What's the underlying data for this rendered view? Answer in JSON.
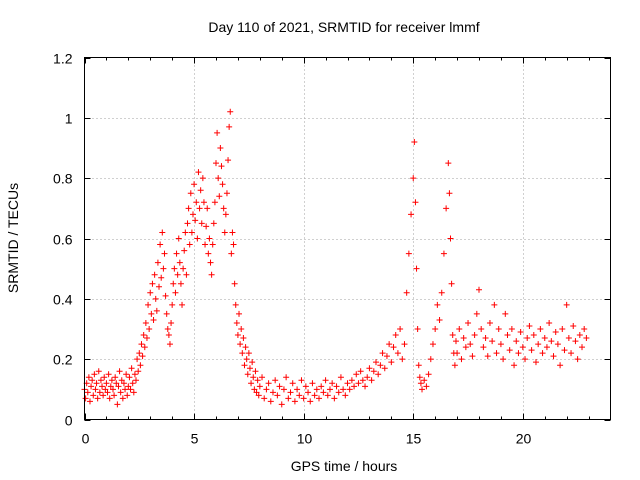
{
  "chart_data": {
    "type": "scatter",
    "title": "Day 110 of 2021, SRMTID for receiver lmmf",
    "xlabel": "GPS time / hours",
    "ylabel": "SRMTID / TECUs",
    "xlim": [
      0,
      24
    ],
    "ylim": [
      0,
      1.2
    ],
    "xticks": [
      0,
      5,
      10,
      15,
      20
    ],
    "xtick_labels": [
      "0",
      "5",
      "10",
      "15",
      "20"
    ],
    "yticks": [
      0,
      0.2,
      0.4,
      0.6,
      0.8,
      1.0,
      1.2
    ],
    "ytick_labels": [
      "0",
      "0.2",
      "0.4",
      "0.6",
      "0.8",
      "1",
      "1.2"
    ],
    "grid": true,
    "marker": "plus",
    "color": "#ff0000",
    "series": [
      {
        "name": "SRMTID",
        "x": [
          0.0,
          0.05,
          0.1,
          0.15,
          0.2,
          0.25,
          0.3,
          0.35,
          0.4,
          0.45,
          0.5,
          0.55,
          0.6,
          0.65,
          0.7,
          0.75,
          0.8,
          0.85,
          0.9,
          0.95,
          1.0,
          1.05,
          1.1,
          1.15,
          1.2,
          1.25,
          1.3,
          1.35,
          1.4,
          1.45,
          1.5,
          1.55,
          1.6,
          1.65,
          1.7,
          1.75,
          1.8,
          1.85,
          1.9,
          1.95,
          2.0,
          2.05,
          2.1,
          2.15,
          2.2,
          2.25,
          2.3,
          2.35,
          2.4,
          2.45,
          2.5,
          2.55,
          2.6,
          2.65,
          2.7,
          2.75,
          2.8,
          2.85,
          2.9,
          2.95,
          3.0,
          3.05,
          3.1,
          3.15,
          3.2,
          3.25,
          3.3,
          3.35,
          3.4,
          3.45,
          3.5,
          3.55,
          3.6,
          3.65,
          3.7,
          3.75,
          3.8,
          3.85,
          3.9,
          3.95,
          4.0,
          4.05,
          4.1,
          4.15,
          4.2,
          4.25,
          4.3,
          4.35,
          4.4,
          4.45,
          4.5,
          4.55,
          4.6,
          4.65,
          4.7,
          4.75,
          4.8,
          4.85,
          4.9,
          4.95,
          5.0,
          5.05,
          5.1,
          5.15,
          5.2,
          5.25,
          5.3,
          5.35,
          5.4,
          5.45,
          5.5,
          5.55,
          5.6,
          5.65,
          5.7,
          5.75,
          5.8,
          5.85,
          5.9,
          5.95,
          6.0,
          6.05,
          6.1,
          6.15,
          6.2,
          6.25,
          6.3,
          6.35,
          6.4,
          6.45,
          6.5,
          6.55,
          6.6,
          6.65,
          6.7,
          6.75,
          6.8,
          6.85,
          6.9,
          6.95,
          7.0,
          7.05,
          7.1,
          7.15,
          7.2,
          7.25,
          7.3,
          7.35,
          7.4,
          7.45,
          7.5,
          7.55,
          7.6,
          7.65,
          7.7,
          7.75,
          7.8,
          7.85,
          7.9,
          7.95,
          8.0,
          8.1,
          8.2,
          8.3,
          8.4,
          8.5,
          8.6,
          8.7,
          8.8,
          8.9,
          9.0,
          9.1,
          9.2,
          9.3,
          9.4,
          9.5,
          9.6,
          9.7,
          9.8,
          9.9,
          10.0,
          10.1,
          10.2,
          10.3,
          10.4,
          10.5,
          10.6,
          10.7,
          10.8,
          10.9,
          11.0,
          11.1,
          11.2,
          11.3,
          11.4,
          11.5,
          11.6,
          11.7,
          11.8,
          11.9,
          12.0,
          12.1,
          12.2,
          12.3,
          12.4,
          12.5,
          12.6,
          12.7,
          12.8,
          12.9,
          13.0,
          13.1,
          13.2,
          13.3,
          13.4,
          13.5,
          13.6,
          13.7,
          13.8,
          13.9,
          14.0,
          14.1,
          14.2,
          14.3,
          14.4,
          14.5,
          14.6,
          14.7,
          14.8,
          14.9,
          15.0,
          15.05,
          15.1,
          15.15,
          15.2,
          15.25,
          15.3,
          15.35,
          15.4,
          15.5,
          15.6,
          15.7,
          15.8,
          15.9,
          16.0,
          16.1,
          16.2,
          16.3,
          16.4,
          16.5,
          16.6,
          16.65,
          16.7,
          16.75,
          16.8,
          16.85,
          16.9,
          16.95,
          17.0,
          17.1,
          17.2,
          17.3,
          17.4,
          17.5,
          17.6,
          17.7,
          17.8,
          17.9,
          18.0,
          18.1,
          18.2,
          18.3,
          18.4,
          18.5,
          18.6,
          18.7,
          18.8,
          18.9,
          19.0,
          19.1,
          19.2,
          19.3,
          19.4,
          19.5,
          19.6,
          19.7,
          19.8,
          19.9,
          20.0,
          20.1,
          20.2,
          20.3,
          20.4,
          20.5,
          20.6,
          20.7,
          20.8,
          20.9,
          21.0,
          21.1,
          21.2,
          21.3,
          21.4,
          21.5,
          21.6,
          21.7,
          21.8,
          21.9,
          22.0,
          22.1,
          22.2,
          22.3,
          22.4,
          22.5,
          22.6,
          22.7,
          22.8,
          22.9
        ],
        "y": [
          0.1,
          0.07,
          0.12,
          0.09,
          0.14,
          0.06,
          0.11,
          0.13,
          0.08,
          0.15,
          0.1,
          0.12,
          0.07,
          0.16,
          0.09,
          0.13,
          0.11,
          0.08,
          0.14,
          0.1,
          0.12,
          0.09,
          0.15,
          0.07,
          0.11,
          0.13,
          0.1,
          0.08,
          0.14,
          0.12,
          0.05,
          0.11,
          0.16,
          0.09,
          0.13,
          0.07,
          0.12,
          0.1,
          0.15,
          0.08,
          0.11,
          0.14,
          0.1,
          0.17,
          0.12,
          0.09,
          0.15,
          0.13,
          0.2,
          0.16,
          0.22,
          0.18,
          0.25,
          0.21,
          0.28,
          0.24,
          0.32,
          0.27,
          0.38,
          0.3,
          0.42,
          0.35,
          0.45,
          0.33,
          0.48,
          0.4,
          0.36,
          0.52,
          0.44,
          0.58,
          0.47,
          0.62,
          0.5,
          0.55,
          0.41,
          0.35,
          0.3,
          0.28,
          0.25,
          0.32,
          0.38,
          0.45,
          0.5,
          0.42,
          0.55,
          0.48,
          0.6,
          0.52,
          0.45,
          0.38,
          0.5,
          0.56,
          0.62,
          0.48,
          0.65,
          0.7,
          0.58,
          0.75,
          0.62,
          0.68,
          0.78,
          0.66,
          0.72,
          0.6,
          0.82,
          0.7,
          0.76,
          0.65,
          0.8,
          0.72,
          0.58,
          0.64,
          0.7,
          0.55,
          0.6,
          0.52,
          0.48,
          0.58,
          0.65,
          0.72,
          0.85,
          0.95,
          0.8,
          0.74,
          0.9,
          0.84,
          0.78,
          0.7,
          0.62,
          0.68,
          0.75,
          0.86,
          0.97,
          1.02,
          0.55,
          0.62,
          0.58,
          0.45,
          0.38,
          0.32,
          0.28,
          0.35,
          0.25,
          0.3,
          0.22,
          0.27,
          0.18,
          0.24,
          0.2,
          0.15,
          0.22,
          0.17,
          0.12,
          0.19,
          0.14,
          0.1,
          0.16,
          0.09,
          0.13,
          0.08,
          0.11,
          0.14,
          0.07,
          0.1,
          0.12,
          0.06,
          0.09,
          0.13,
          0.08,
          0.11,
          0.05,
          0.1,
          0.14,
          0.07,
          0.09,
          0.12,
          0.06,
          0.1,
          0.08,
          0.13,
          0.07,
          0.11,
          0.09,
          0.06,
          0.12,
          0.08,
          0.1,
          0.07,
          0.11,
          0.09,
          0.13,
          0.08,
          0.1,
          0.12,
          0.07,
          0.11,
          0.09,
          0.14,
          0.1,
          0.08,
          0.12,
          0.1,
          0.13,
          0.11,
          0.15,
          0.12,
          0.16,
          0.13,
          0.11,
          0.14,
          0.17,
          0.13,
          0.16,
          0.19,
          0.15,
          0.18,
          0.22,
          0.17,
          0.21,
          0.25,
          0.19,
          0.24,
          0.28,
          0.22,
          0.3,
          0.2,
          0.25,
          0.42,
          0.55,
          0.68,
          0.8,
          0.92,
          0.72,
          0.5,
          0.3,
          0.18,
          0.14,
          0.12,
          0.1,
          0.13,
          0.11,
          0.15,
          0.2,
          0.25,
          0.3,
          0.38,
          0.33,
          0.42,
          0.55,
          0.7,
          0.85,
          0.75,
          0.6,
          0.45,
          0.28,
          0.22,
          0.18,
          0.26,
          0.22,
          0.3,
          0.2,
          0.27,
          0.24,
          0.32,
          0.25,
          0.21,
          0.28,
          0.35,
          0.43,
          0.3,
          0.24,
          0.27,
          0.21,
          0.32,
          0.26,
          0.38,
          0.22,
          0.3,
          0.25,
          0.2,
          0.35,
          0.28,
          0.23,
          0.3,
          0.18,
          0.26,
          0.22,
          0.29,
          0.24,
          0.2,
          0.27,
          0.31,
          0.23,
          0.28,
          0.19,
          0.25,
          0.3,
          0.22,
          0.27,
          0.24,
          0.32,
          0.26,
          0.21,
          0.29,
          0.25,
          0.18,
          0.3,
          0.23,
          0.38,
          0.27,
          0.22,
          0.31,
          0.26,
          0.2,
          0.28,
          0.24,
          0.3,
          0.27
        ]
      }
    ]
  }
}
